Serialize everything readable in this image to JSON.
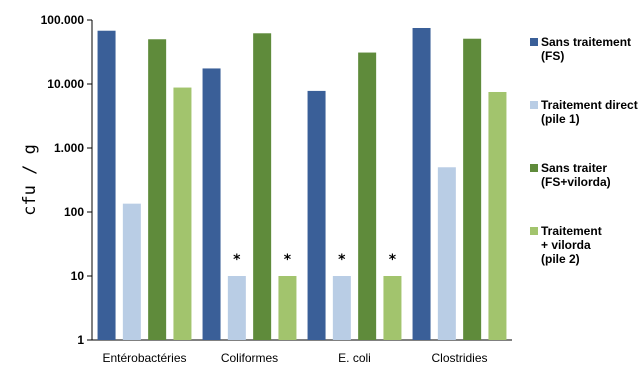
{
  "chart_data": {
    "type": "bar",
    "y_scale": "log",
    "ylabel": "cfu / g",
    "ylim": [
      1,
      100000
    ],
    "y_ticks": [
      {
        "value": 1,
        "label": "1"
      },
      {
        "value": 10,
        "label": "10"
      },
      {
        "value": 100,
        "label": "100"
      },
      {
        "value": 1000,
        "label": "1.000"
      },
      {
        "value": 10000,
        "label": "10.000"
      },
      {
        "value": 100000,
        "label": "100.000"
      }
    ],
    "categories": [
      "Entérobactéries",
      "Coliformes",
      "E. coli",
      "Clostridies"
    ],
    "series": [
      {
        "name": "Sans traitement (FS)",
        "legend_lines": [
          "Sans traitement",
          "(FS)"
        ],
        "color": "#3a5f98",
        "values": [
          68000,
          17500,
          7800,
          75000
        ],
        "markers": [
          "",
          "",
          "",
          ""
        ]
      },
      {
        "name": "Traitement direct (pile 1)",
        "legend_lines": [
          "Traitement direct",
          "(pile 1)"
        ],
        "color": "#b9cde5",
        "values": [
          135,
          10,
          10,
          500
        ],
        "markers": [
          "",
          "*",
          "*",
          ""
        ]
      },
      {
        "name": "Sans traiter (FS+vilorda)",
        "legend_lines": [
          "Sans traiter",
          "(FS+vilorda)"
        ],
        "color": "#5f8b3b",
        "values": [
          50000,
          62000,
          31000,
          51000
        ],
        "markers": [
          "",
          "",
          "",
          ""
        ]
      },
      {
        "name": "Traitement + vilorda (pile 2)",
        "legend_lines": [
          "Traitement",
          "+ vilorda",
          "(pile 2)"
        ],
        "color": "#a2c46d",
        "values": [
          8800,
          10,
          10,
          7500
        ],
        "markers": [
          "",
          "*",
          "*",
          ""
        ]
      }
    ],
    "grid": false,
    "legend_position": "right"
  }
}
